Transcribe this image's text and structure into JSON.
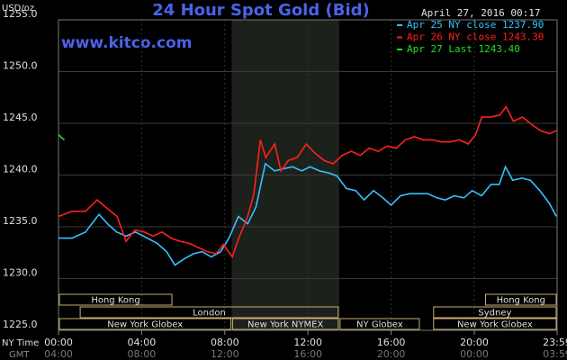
{
  "chart_data": {
    "type": "line",
    "title": "24 Hour Spot Gold (Bid)",
    "site": "www.kitco.com",
    "unit": "USD/oz",
    "timestamp": "April 27, 2016 00:17",
    "x_row_label": "NY Time",
    "x2_row_label": "GMT",
    "xlim": [
      0,
      23.983
    ],
    "xticks": [
      {
        "value": 0,
        "label": "00:00"
      },
      {
        "value": 4,
        "label": "04:00"
      },
      {
        "value": 8,
        "label": "08:00"
      },
      {
        "value": 12,
        "label": "12:00"
      },
      {
        "value": 16,
        "label": "16:00"
      },
      {
        "value": 20,
        "label": "20:00"
      },
      {
        "value": 23.983,
        "label": "23:59"
      }
    ],
    "gmt_labels": [
      "04:00",
      "08:00",
      "12:00",
      "16:00",
      "20:00",
      "00:00",
      "03:59"
    ],
    "ylim": [
      1225,
      1255
    ],
    "yticks": [
      {
        "value": 1225,
        "label": "1225.0"
      },
      {
        "value": 1230,
        "label": "1230.0"
      },
      {
        "value": 1235,
        "label": "1235.0"
      },
      {
        "value": 1240,
        "label": "1240.0"
      },
      {
        "value": 1245,
        "label": "1245.0"
      },
      {
        "value": 1250,
        "label": "1250.0"
      },
      {
        "value": 1255,
        "label": "1255.0"
      }
    ],
    "grid": true,
    "highlight": [
      8.33,
      13.5
    ],
    "series": [
      {
        "name": "Apr 25 NY close 1237.90",
        "color": "#33c3ff",
        "x": [
          0,
          0.65,
          1.3,
          1.95,
          2.4,
          2.8,
          3.25,
          3.7,
          4.1,
          4.75,
          5.2,
          5.6,
          6.05,
          6.5,
          6.9,
          7.35,
          7.8,
          8.2,
          8.65,
          9.1,
          9.5,
          9.95,
          10.4,
          10.8,
          11.25,
          11.7,
          12.1,
          12.55,
          13.0,
          13.4,
          13.85,
          14.3,
          14.7,
          15.15,
          15.6,
          16.0,
          16.45,
          16.9,
          17.3,
          17.75,
          18.2,
          18.6,
          19.05,
          19.5,
          19.9,
          20.35,
          20.8,
          21.2,
          21.5,
          21.85,
          22.3,
          22.7,
          23.15,
          23.6,
          23.95
        ],
        "values": [
          1233.9,
          1233.9,
          1234.5,
          1236.2,
          1235.2,
          1234.5,
          1234.1,
          1234.5,
          1234.1,
          1233.4,
          1232.6,
          1231.3,
          1231.9,
          1232.4,
          1232.6,
          1232.1,
          1232.6,
          1233.9,
          1236.0,
          1235.3,
          1236.9,
          1241.1,
          1240.4,
          1240.6,
          1240.8,
          1240.4,
          1240.8,
          1240.4,
          1240.2,
          1239.9,
          1238.7,
          1238.5,
          1237.6,
          1238.5,
          1237.8,
          1237.1,
          1238.0,
          1238.2,
          1238.2,
          1238.2,
          1237.8,
          1237.6,
          1238.0,
          1237.8,
          1238.5,
          1238.0,
          1239.1,
          1239.1,
          1240.8,
          1239.5,
          1239.7,
          1239.5,
          1238.5,
          1237.3,
          1236.0
        ]
      },
      {
        "name": "Apr 26 NY close 1243.30",
        "color": "#ff2020",
        "x": [
          0,
          0.65,
          1.3,
          1.86,
          2.38,
          2.82,
          3.25,
          3.68,
          4.12,
          4.55,
          4.98,
          5.42,
          5.85,
          6.28,
          6.72,
          7.15,
          7.58,
          7.93,
          8.36,
          8.67,
          9.1,
          9.4,
          9.71,
          9.97,
          10.4,
          10.7,
          11.05,
          11.48,
          11.92,
          12.35,
          12.78,
          13.21,
          13.65,
          14.08,
          14.51,
          14.95,
          15.38,
          15.81,
          16.25,
          16.68,
          17.11,
          17.55,
          17.98,
          18.41,
          18.85,
          19.28,
          19.71,
          20.06,
          20.36,
          20.8,
          21.23,
          21.53,
          21.88,
          22.31,
          22.75,
          23.18,
          23.61,
          23.96
        ],
        "values": [
          1236.0,
          1236.5,
          1236.5,
          1237.6,
          1236.7,
          1236.0,
          1233.6,
          1234.7,
          1234.5,
          1234.1,
          1234.5,
          1233.9,
          1233.6,
          1233.4,
          1233.0,
          1232.6,
          1232.4,
          1233.3,
          1232.1,
          1233.9,
          1236.0,
          1238.2,
          1243.4,
          1241.7,
          1243.0,
          1240.4,
          1241.4,
          1241.7,
          1243.0,
          1242.1,
          1241.4,
          1241.1,
          1241.9,
          1242.3,
          1241.9,
          1242.6,
          1242.3,
          1242.8,
          1242.6,
          1243.4,
          1243.7,
          1243.4,
          1243.4,
          1243.2,
          1243.2,
          1243.4,
          1243.0,
          1243.9,
          1245.6,
          1245.6,
          1245.8,
          1246.6,
          1245.2,
          1245.6,
          1244.9,
          1244.3,
          1244.0,
          1244.3
        ]
      },
      {
        "name": "Apr 27 Last 1243.40",
        "color": "#22dd22",
        "x": [
          0,
          0.15,
          0.28
        ],
        "values": [
          1243.9,
          1243.6,
          1243.4
        ]
      }
    ],
    "sessions": [
      [
        {
          "label": "Hong Kong",
          "start": 0,
          "end": 5.5
        },
        {
          "label": "Hong Kong",
          "start": 20.5,
          "end": 23.983
        }
      ],
      [
        {
          "label": "London",
          "start": 1,
          "end": 13.5
        },
        {
          "label": "Sydney",
          "start": 18,
          "end": 23.983
        }
      ],
      [
        {
          "label": "New York Globex",
          "start": 0,
          "end": 8.33
        },
        {
          "label": "New York NYMEX",
          "start": 8.33,
          "end": 13.5
        },
        {
          "label": "NY Globex",
          "start": 13.5,
          "end": 17.4
        },
        {
          "label": "New York Globex",
          "start": 18,
          "end": 23.983
        }
      ]
    ]
  }
}
